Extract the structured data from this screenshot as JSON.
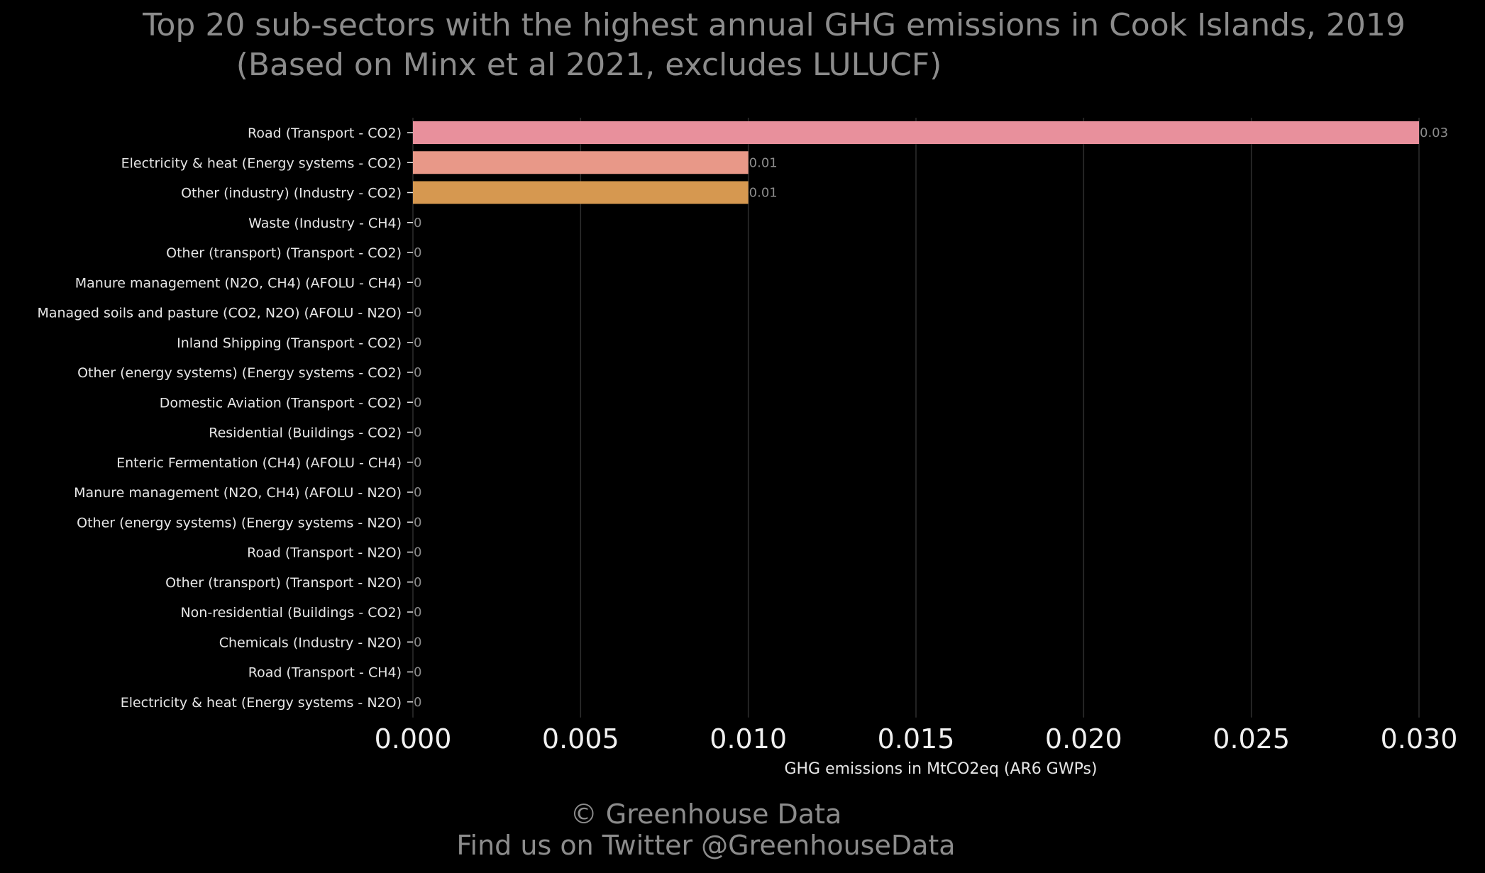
{
  "chart_data": {
    "type": "bar",
    "orientation": "horizontal",
    "title": "Top 20 sub-sectors with the highest annual GHG emissions in Cook Islands, 2019",
    "subtitle": "(Based on Minx et al 2021, excludes LULUCF)",
    "xlabel": "GHG emissions in MtCO2eq (AR6 GWPs)",
    "ylabel": "",
    "xlim": [
      0,
      0.031
    ],
    "xticks": [
      "0.000",
      "0.005",
      "0.010",
      "0.015",
      "0.020",
      "0.025",
      "0.030"
    ],
    "xtick_values": [
      0,
      0.005,
      0.01,
      0.015,
      0.02,
      0.025,
      0.03
    ],
    "grid": "vertical",
    "categories": [
      "Road (Transport - CO2)",
      "Electricity & heat (Energy systems - CO2)",
      "Other (industry) (Industry - CO2)",
      "Waste (Industry - CH4)",
      "Other (transport) (Transport - CO2)",
      "Manure management (N2O, CH4) (AFOLU - CH4)",
      "Managed soils and pasture (CO2, N2O) (AFOLU - N2O)",
      "Inland Shipping (Transport - CO2)",
      "Other (energy systems) (Energy systems - CO2)",
      "Domestic Aviation (Transport - CO2)",
      "Residential (Buildings - CO2)",
      "Enteric Fermentation (CH4) (AFOLU - CH4)",
      "Manure management (N2O, CH4) (AFOLU - N2O)",
      "Other (energy systems) (Energy systems - N2O)",
      "Road (Transport - N2O)",
      "Other (transport) (Transport - N2O)",
      "Non-residential (Buildings - CO2)",
      "Chemicals (Industry - N2O)",
      "Road (Transport - CH4)",
      "Electricity & heat (Energy systems - N2O)"
    ],
    "values": [
      0.03,
      0.01,
      0.01,
      0,
      0,
      0,
      0,
      0,
      0,
      0,
      0,
      0,
      0,
      0,
      0,
      0,
      0,
      0,
      0,
      0
    ],
    "data_labels": [
      "0.03",
      "0.01",
      "0.01",
      "0",
      "0",
      "0",
      "0",
      "0",
      "0",
      "0",
      "0",
      "0",
      "0",
      "0",
      "0",
      "0",
      "0",
      "0",
      "0",
      "0"
    ],
    "bar_colors": [
      "#e8909c",
      "#e89888",
      "#d69850"
    ]
  },
  "footer": {
    "copyright": "© Greenhouse Data",
    "twitter": "Find us on Twitter @GreenhouseData"
  },
  "colors": {
    "background": "#000000",
    "title_text": "#8c8c8c",
    "label_text": "#e6e6e6",
    "tick_text": "#f0f0f0",
    "data_label_text": "#8c8c8c",
    "grid": "#2e2e2e"
  }
}
